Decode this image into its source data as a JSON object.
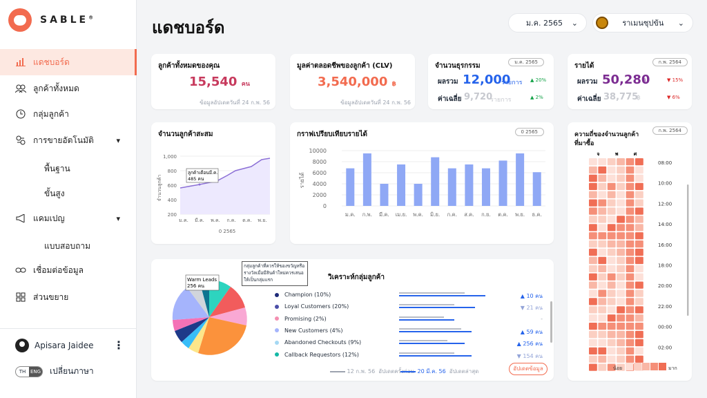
{
  "brand": {
    "name": "SABLE",
    "reg": "®"
  },
  "nav": {
    "dashboard": "แดชบอร์ด",
    "all_customers": "ลูกค้าทั้งหมด",
    "groups": "กลุ่มลูกค้า",
    "automation": "การขายอัตโนมัติ",
    "basic": "พื้นฐาน",
    "advanced": "ขั้นสูง",
    "campaign": "แคมเปญ",
    "survey": "แบบสอบถาม",
    "connect": "เชื่อมต่อข้อมูล",
    "extend": "ส่วนขยาย"
  },
  "user": {
    "name": "Apisara Jaidee",
    "lang_th": "TH",
    "lang_en": "ENG",
    "lang_label": "เปลี่ยนภาษา"
  },
  "header": {
    "title": "แดชบอร์ด",
    "month": "ม.ค. 2565",
    "shop": "ราเมนซุปข้น"
  },
  "kpi": {
    "customers": {
      "label": "ลูกค้าทั้งหมดของคุณ",
      "value": "15,540",
      "unit": "คน",
      "note": "ข้อมูลอัปเดตวันที่ 24 ก.พ. 56"
    },
    "clv": {
      "label": "มูลค่าตลอดชีพของลูกค้า (CLV)",
      "value": "3,540,000",
      "unit": "฿",
      "note": "ข้อมูลอัปเดตวันที่ 24 ก.พ. 56"
    },
    "tx": {
      "label": "จำนวนธุรกรรม",
      "tag": "ม.ค. 2565",
      "sum_label": "ผลรวม",
      "sum": "12,000",
      "unit": "รายการ",
      "sum_delta": "20%",
      "avg_label": "ค่าเฉลี่ย",
      "avg": "9,720",
      "avg_delta": "2%"
    },
    "rev": {
      "label": "รายได้",
      "tag": "ก.พ. 2564",
      "sum_label": "ผลรวม",
      "sum": "50,280",
      "unit": "฿",
      "sum_delta": "15%",
      "avg_label": "ค่าเฉลี่ย",
      "avg": "38,775",
      "avg_delta": "6%"
    }
  },
  "cumulative": {
    "title": "จำนวนลูกค้าสะสม",
    "ylabel": "จำนวนลูกค้า",
    "xcaption": "0 2565",
    "tooltip1": "ลูกค้าเดือนมี.ค.",
    "tooltip2": "485 คน",
    "yticks": [
      "1,000",
      "800",
      "600",
      "400",
      "200",
      "0"
    ],
    "xticks": [
      "ม.ค.",
      "มี.ค.",
      "พ.ค.",
      "ก.ค.",
      "ต.ค.",
      "พ.ย."
    ]
  },
  "chart_data": {
    "type": "bar",
    "title": "กราฟเปรียบเทียบรายได้",
    "ylabel": "รายได้",
    "tag": "0 2565",
    "categories": [
      "ม.ค.",
      "ก.พ.",
      "มี.ค.",
      "เม.ย.",
      "พ.ค.",
      "มิ.ย.",
      "ก.ค.",
      "ส.ค.",
      "ก.ย.",
      "ต.ค.",
      "พ.ย.",
      "ธ.ค."
    ],
    "values": [
      6800,
      9500,
      4000,
      7500,
      4000,
      8800,
      6800,
      7500,
      6800,
      8200,
      9500,
      6100
    ],
    "yticks": [
      "10000",
      "8000",
      "6000",
      "4000",
      "2000",
      "0"
    ],
    "ylim": [
      0,
      10000
    ]
  },
  "heatmap": {
    "title1": "ความถี่ของจำนวนลูกค้า",
    "title2": "ที่มาซื้อ",
    "tag": "ก.พ. 2564",
    "days": [
      "จ",
      "พ",
      "ศ"
    ],
    "times": [
      "08:00",
      "10:00",
      "12:00",
      "14:00",
      "16:00",
      "18:00",
      "20:00",
      "22:00",
      "00:00",
      "02:00"
    ],
    "low": "น้อย",
    "high": "มาก"
  },
  "segments": {
    "title": "วิเคราะห์กลุ่มลูกค้า",
    "callout": "กลุ่มลูกค้าที่ควรให้ของขวัญหรือรางวัลเมื่อมีสินค้าใหม่ควรเสนอให้เป็นกลุ่มแรก",
    "warm_label": "Warm Leads",
    "warm_value": "256 คน",
    "items": [
      {
        "name": "Champion (10%)",
        "color": "#1e2a78",
        "delta": "▲ 10 คน"
      },
      {
        "name": "Loyal Customers (20%)",
        "color": "#4b4ea8",
        "delta": "▼ 21 คน"
      },
      {
        "name": "Promising (2%)",
        "color": "#f48fb1",
        "delta": "-"
      },
      {
        "name": "New Customers (4%)",
        "color": "#a5b4fc",
        "delta": "▲ 59 คน"
      },
      {
        "name": "Abandoned Checkouts (9%)",
        "color": "#a5d8f3",
        "delta": "▲ 256 คน"
      },
      {
        "name": "Callback Requestors (12%)",
        "color": "#14b8a6",
        "delta": "▼ 154 คน"
      }
    ],
    "legend_prev": "12 ก.พ. 56",
    "legend_prev_label": "อัปเดตครั้งก่อน",
    "legend_cur": "20 มี.ค. 56",
    "legend_cur_label": "อัปเดตล่าสุด",
    "update_btn": "อัปเดตข้อมูล"
  }
}
